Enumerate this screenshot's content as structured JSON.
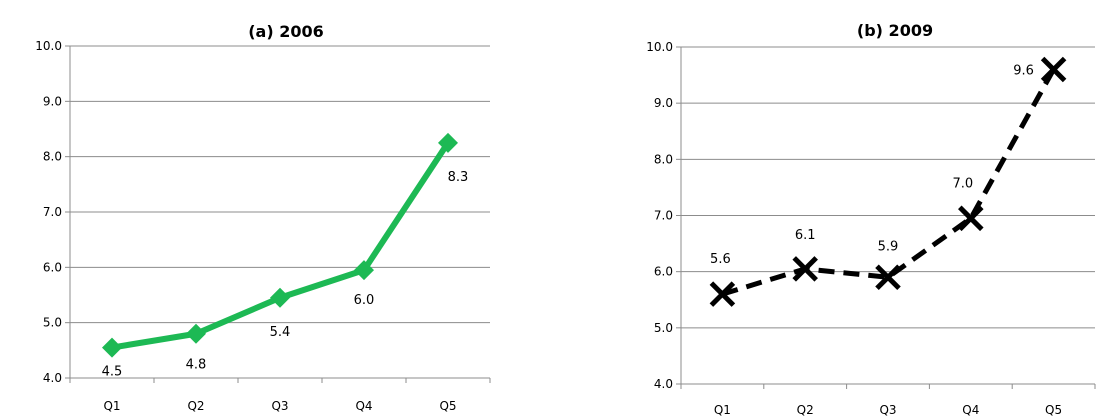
{
  "chart_data": [
    {
      "type": "line",
      "title": "(a) 2006",
      "categories": [
        "Q1",
        "Q2",
        "Q3",
        "Q4",
        "Q5"
      ],
      "series": [
        {
          "values": [
            4.55,
            4.8,
            5.45,
            5.95,
            8.25
          ],
          "labels": [
            "4.5",
            "4.8",
            "5.4",
            "6.0",
            "8.3"
          ]
        }
      ],
      "ylim": [
        4.0,
        10.0
      ],
      "yticks": [
        "4.0",
        "5.0",
        "6.0",
        "7.0",
        "8.0",
        "9.0",
        "10.0"
      ],
      "grid": true,
      "line_color": "#1db954",
      "line_style": "solid",
      "marker": "diamond",
      "label_position": "below"
    },
    {
      "type": "line",
      "title": "(b) 2009",
      "categories": [
        "Q1",
        "Q2",
        "Q3",
        "Q4",
        "Q5"
      ],
      "series": [
        {
          "values": [
            5.6,
            6.05,
            5.9,
            6.95,
            9.6
          ],
          "labels": [
            "5.6",
            "6.1",
            "5.9",
            "7.0",
            "9.6"
          ]
        }
      ],
      "ylim": [
        4.0,
        10.0
      ],
      "yticks": [
        "4.0",
        "5.0",
        "6.0",
        "7.0",
        "8.0",
        "9.0",
        "10.0"
      ],
      "grid": true,
      "line_color": "#000000",
      "line_style": "dashed",
      "marker": "x",
      "label_position": "above"
    }
  ]
}
